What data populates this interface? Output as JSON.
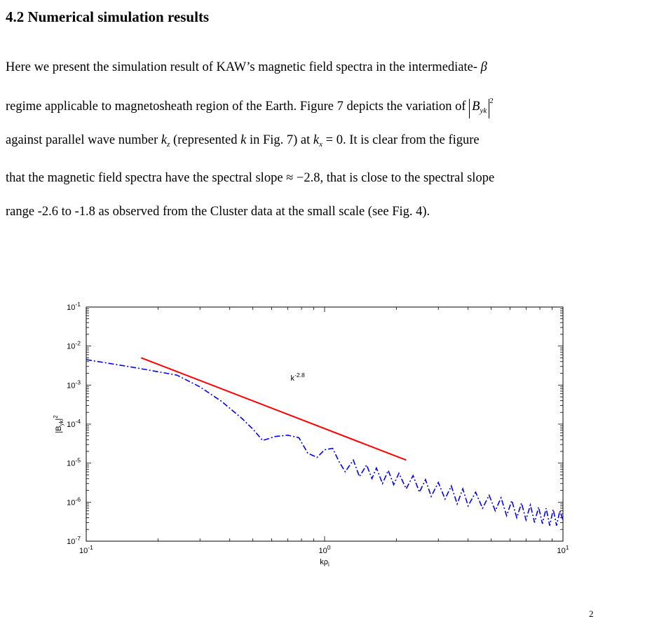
{
  "heading": "4.2 Numerical simulation results",
  "para": {
    "l1a": "Here we present the simulation result of KAW’s magnetic field spectra in the intermediate-",
    "beta": "β",
    "l2a": "regime applicable to magnetosheath region of the Earth. Figure 7 depicts the variation of",
    "B": "B",
    "yk": "yk",
    "sq": "2",
    "l3a": "against parallel wave number",
    "k": "k",
    "z": "z",
    "l3b": "(represented",
    "l3c": "k",
    "l3d": "in Fig. 7) at",
    "x": "x",
    "eq0": "= 0",
    "l3e": ". It is clear from the figure",
    "l4a": "that the magnetic field spectra have the spectral slope",
    "approx": "≈ −2.8",
    "l4b": ", that is close to the spectral slope",
    "l5": "range -2.6 to -1.8 as observed from the Cluster data at the small scale (see Fig. 4)."
  },
  "caption_fragment": "2",
  "chart_data": {
    "type": "line",
    "title": "",
    "xlabel": "kρ_i",
    "ylabel": "|B_yk|^2",
    "xscale": "log",
    "yscale": "log",
    "xlim": [
      0.1,
      10
    ],
    "ylim": [
      1e-07,
      0.1
    ],
    "xticks": [
      {
        "value": 0.1,
        "base": "10",
        "exp": "-1"
      },
      {
        "value": 1,
        "base": "10",
        "exp": "0"
      },
      {
        "value": 10,
        "base": "10",
        "exp": "1"
      }
    ],
    "yticks": [
      {
        "value": 0.1,
        "base": "10",
        "exp": "-1"
      },
      {
        "value": 0.01,
        "base": "10",
        "exp": "-2"
      },
      {
        "value": 0.001,
        "base": "10",
        "exp": "-3"
      },
      {
        "value": 0.0001,
        "base": "10",
        "exp": "-4"
      },
      {
        "value": 1e-05,
        "base": "10",
        "exp": "-5"
      },
      {
        "value": 1e-06,
        "base": "10",
        "exp": "-6"
      },
      {
        "value": 1e-07,
        "base": "10",
        "exp": "-7"
      }
    ],
    "annotation": {
      "base": "k",
      "exp": "-2.8",
      "x": 0.72,
      "y": 0.0013
    },
    "series": [
      {
        "style": "dash-dot",
        "color": "#0000ff",
        "x": [
          0.1,
          0.16,
          0.2,
          0.24,
          0.3,
          0.37,
          0.45,
          0.5,
          0.55,
          0.62,
          0.7,
          0.78,
          0.85,
          0.93,
          1.0,
          1.08,
          1.15,
          1.22,
          1.32,
          1.4,
          1.5,
          1.58,
          1.65,
          1.75,
          1.85,
          1.95,
          2.05,
          2.2,
          2.35,
          2.5,
          2.65,
          2.8,
          3.0,
          3.2,
          3.4,
          3.6,
          3.8,
          4.0,
          4.3,
          4.6,
          4.9,
          5.2,
          5.5,
          5.8,
          6.1,
          6.4,
          6.7,
          7.0,
          7.3,
          7.6,
          7.9,
          8.2,
          8.5,
          8.8,
          9.1,
          9.4,
          9.7,
          10.0
        ],
        "y": [
          0.0045,
          0.0028,
          0.0022,
          0.0018,
          0.0009,
          0.00038,
          0.00014,
          7.5e-05,
          3.8e-05,
          4.8e-05,
          5.2e-05,
          4.5e-05,
          1.8e-05,
          1.4e-05,
          2.2e-05,
          2.4e-05,
          1.1e-05,
          6e-06,
          1.2e-05,
          4.5e-06,
          9e-06,
          4e-06,
          7.5e-06,
          3e-06,
          6.5e-06,
          2.8e-06,
          5.5e-06,
          2.2e-06,
          4.8e-06,
          1.8e-06,
          3.8e-06,
          1.4e-06,
          3.2e-06,
          1.2e-06,
          2.6e-06,
          9e-07,
          2.2e-06,
          8e-07,
          1.8e-06,
          7e-07,
          1.5e-06,
          6e-07,
          1.3e-06,
          4.5e-07,
          1.1e-06,
          4e-07,
          9.5e-07,
          3.5e-07,
          8.5e-07,
          3e-07,
          7.5e-07,
          2.8e-07,
          7e-07,
          2.5e-07,
          6.5e-07,
          2.5e-07,
          6e-07,
          3.5e-07
        ]
      },
      {
        "style": "solid",
        "color": "#ff0000",
        "x": [
          0.17,
          2.2
        ],
        "y": [
          0.005,
          1.2e-05
        ]
      }
    ]
  }
}
